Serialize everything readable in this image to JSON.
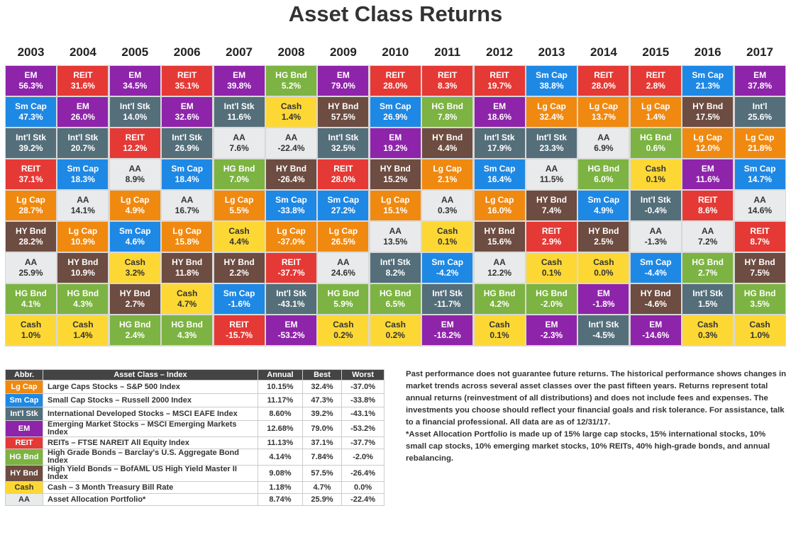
{
  "title": "Asset Class Returns",
  "colors": {
    "Lg Cap": "#f0890f",
    "Sm Cap": "#1e88e5",
    "Int'l Stk": "#546e7a",
    "EM": "#8e24aa",
    "REIT": "#e53935",
    "HG Bnd": "#7cb342",
    "HY Bnd": "#6d4c41",
    "Cash": "#fdd835",
    "AA": "#e8eaeb"
  },
  "chart_data": {
    "type": "table",
    "years": [
      "2003",
      "2004",
      "2005",
      "2006",
      "2007",
      "2008",
      "2009",
      "2010",
      "2011",
      "2012",
      "2013",
      "2014",
      "2015",
      "2016",
      "2017"
    ],
    "columns": [
      [
        [
          "EM",
          "56.3%"
        ],
        [
          "Sm Cap",
          "47.3%"
        ],
        [
          "Int'l Stk",
          "39.2%"
        ],
        [
          "REIT",
          "37.1%"
        ],
        [
          "Lg Cap",
          "28.7%"
        ],
        [
          "HY Bnd",
          "28.2%"
        ],
        [
          "AA",
          "25.9%"
        ],
        [
          "HG Bnd",
          "4.1%"
        ],
        [
          "Cash",
          "1.0%"
        ]
      ],
      [
        [
          "REIT",
          "31.6%"
        ],
        [
          "EM",
          "26.0%"
        ],
        [
          "Int'l Stk",
          "20.7%"
        ],
        [
          "Sm Cap",
          "18.3%"
        ],
        [
          "AA",
          "14.1%"
        ],
        [
          "Lg Cap",
          "10.9%"
        ],
        [
          "HY Bnd",
          "10.9%"
        ],
        [
          "HG Bnd",
          "4.3%"
        ],
        [
          "Cash",
          "1.4%"
        ]
      ],
      [
        [
          "EM",
          "34.5%"
        ],
        [
          "Int'l Stk",
          "14.0%"
        ],
        [
          "REIT",
          "12.2%"
        ],
        [
          "AA",
          "8.9%"
        ],
        [
          "Lg Cap",
          "4.9%"
        ],
        [
          "Sm Cap",
          "4.6%"
        ],
        [
          "Cash",
          "3.2%"
        ],
        [
          "HY Bnd",
          "2.7%"
        ],
        [
          "HG Bnd",
          "2.4%"
        ]
      ],
      [
        [
          "REIT",
          "35.1%"
        ],
        [
          "EM",
          "32.6%"
        ],
        [
          "Int'l Stk",
          "26.9%"
        ],
        [
          "Sm Cap",
          "18.4%"
        ],
        [
          "AA",
          "16.7%"
        ],
        [
          "Lg Cap",
          "15.8%"
        ],
        [
          "HY Bnd",
          "11.8%"
        ],
        [
          "Cash",
          "4.7%"
        ],
        [
          "HG Bnd",
          "4.3%"
        ]
      ],
      [
        [
          "EM",
          "39.8%"
        ],
        [
          "Int'l Stk",
          "11.6%"
        ],
        [
          "AA",
          "7.6%"
        ],
        [
          "HG Bnd",
          "7.0%"
        ],
        [
          "Lg Cap",
          "5.5%"
        ],
        [
          "Cash",
          "4.4%"
        ],
        [
          "HY Bnd",
          "2.2%"
        ],
        [
          "Sm Cap",
          "-1.6%"
        ],
        [
          "REIT",
          "-15.7%"
        ]
      ],
      [
        [
          "HG Bnd",
          "5.2%"
        ],
        [
          "Cash",
          "1.4%"
        ],
        [
          "AA",
          "-22.4%"
        ],
        [
          "HY Bnd",
          "-26.4%"
        ],
        [
          "Sm Cap",
          "-33.8%"
        ],
        [
          "Lg Cap",
          "-37.0%"
        ],
        [
          "REIT",
          "-37.7%"
        ],
        [
          "Int'l Stk",
          "-43.1%"
        ],
        [
          "EM",
          "-53.2%"
        ]
      ],
      [
        [
          "EM",
          "79.0%"
        ],
        [
          "HY Bnd",
          "57.5%"
        ],
        [
          "Int'l Stk",
          "32.5%"
        ],
        [
          "REIT",
          "28.0%"
        ],
        [
          "Sm Cap",
          "27.2%"
        ],
        [
          "Lg Cap",
          "26.5%"
        ],
        [
          "AA",
          "24.6%"
        ],
        [
          "HG Bnd",
          "5.9%"
        ],
        [
          "Cash",
          "0.2%"
        ]
      ],
      [
        [
          "REIT",
          "28.0%"
        ],
        [
          "Sm Cap",
          "26.9%"
        ],
        [
          "EM",
          "19.2%"
        ],
        [
          "HY Bnd",
          "15.2%"
        ],
        [
          "Lg Cap",
          "15.1%"
        ],
        [
          "AA",
          "13.5%"
        ],
        [
          "Int'l Stk",
          "8.2%"
        ],
        [
          "HG Bnd",
          "6.5%"
        ],
        [
          "Cash",
          "0.2%"
        ]
      ],
      [
        [
          "REIT",
          "8.3%"
        ],
        [
          "HG Bnd",
          "7.8%"
        ],
        [
          "HY Bnd",
          "4.4%"
        ],
        [
          "Lg Cap",
          "2.1%"
        ],
        [
          "AA",
          "0.3%"
        ],
        [
          "Cash",
          "0.1%"
        ],
        [
          "Sm Cap",
          "-4.2%"
        ],
        [
          "Int'l Stk",
          "-11.7%"
        ],
        [
          "EM",
          "-18.2%"
        ]
      ],
      [
        [
          "REIT",
          "19.7%"
        ],
        [
          "EM",
          "18.6%"
        ],
        [
          "Int'l Stk",
          "17.9%"
        ],
        [
          "Sm Cap",
          "16.4%"
        ],
        [
          "Lg Cap",
          "16.0%"
        ],
        [
          "HY Bnd",
          "15.6%"
        ],
        [
          "AA",
          "12.2%"
        ],
        [
          "HG Bnd",
          "4.2%"
        ],
        [
          "Cash",
          "0.1%"
        ]
      ],
      [
        [
          "Sm Cap",
          "38.8%"
        ],
        [
          "Lg Cap",
          "32.4%"
        ],
        [
          "Int'l Stk",
          "23.3%"
        ],
        [
          "AA",
          "11.5%"
        ],
        [
          "HY Bnd",
          "7.4%"
        ],
        [
          "REIT",
          "2.9%"
        ],
        [
          "Cash",
          "0.1%"
        ],
        [
          "HG Bnd",
          "-2.0%"
        ],
        [
          "EM",
          "-2.3%"
        ]
      ],
      [
        [
          "REIT",
          "28.0%"
        ],
        [
          "Lg Cap",
          "13.7%"
        ],
        [
          "AA",
          "6.9%"
        ],
        [
          "HG Bnd",
          "6.0%"
        ],
        [
          "Sm Cap",
          "4.9%"
        ],
        [
          "HY Bnd",
          "2.5%"
        ],
        [
          "Cash",
          "0.0%"
        ],
        [
          "EM",
          "-1.8%"
        ],
        [
          "Int'l Stk",
          "-4.5%"
        ]
      ],
      [
        [
          "REIT",
          "2.8%"
        ],
        [
          "Lg Cap",
          "1.4%"
        ],
        [
          "HG Bnd",
          "0.6%"
        ],
        [
          "Cash",
          "0.1%"
        ],
        [
          "Int'l Stk",
          "-0.4%"
        ],
        [
          "AA",
          "-1.3%"
        ],
        [
          "Sm Cap",
          "-4.4%"
        ],
        [
          "HY Bnd",
          "-4.6%"
        ],
        [
          "EM",
          "-14.6%"
        ]
      ],
      [
        [
          "Sm Cap",
          "21.3%"
        ],
        [
          "HY Bnd",
          "17.5%"
        ],
        [
          "Lg Cap",
          "12.0%"
        ],
        [
          "EM",
          "11.6%"
        ],
        [
          "REIT",
          "8.6%"
        ],
        [
          "AA",
          "7.2%"
        ],
        [
          "HG Bnd",
          "2.7%"
        ],
        [
          "Int'l Stk",
          "1.5%"
        ],
        [
          "Cash",
          "0.3%"
        ]
      ],
      [
        [
          "EM",
          "37.8%"
        ],
        [
          "Int'l",
          "25.6%"
        ],
        [
          "Lg Cap",
          "21.8%"
        ],
        [
          "Sm Cap",
          "14.7%"
        ],
        [
          "AA",
          "14.6%"
        ],
        [
          "REIT",
          "8.7%"
        ],
        [
          "HY Bnd",
          "7.5%"
        ],
        [
          "HG Bnd",
          "3.5%"
        ],
        [
          "Cash",
          "1.0%"
        ]
      ]
    ]
  },
  "legend": {
    "headers": [
      "Abbr.",
      "Asset Class – Index",
      "Annual",
      "Best",
      "Worst"
    ],
    "rows": [
      {
        "abbr": "Lg Cap",
        "key": "Lg Cap",
        "name": "Large Caps Stocks – S&P 500 Index",
        "annual": "10.15%",
        "best": "32.4%",
        "worst": "-37.0%"
      },
      {
        "abbr": "Sm Cap",
        "key": "Sm Cap",
        "name": "Small Cap Stocks – Russell 2000 Index",
        "annual": "11.17%",
        "best": "47.3%",
        "worst": "-33.8%"
      },
      {
        "abbr": "Int'l Stk",
        "key": "Int'l Stk",
        "name": "International Developed Stocks – MSCI EAFE Index",
        "annual": "8.60%",
        "best": "39.2%",
        "worst": "-43.1%"
      },
      {
        "abbr": "EM",
        "key": "EM",
        "name": "Emerging Market Stocks – MSCI Emerging Markets Index",
        "annual": "12.68%",
        "best": "79.0%",
        "worst": "-53.2%"
      },
      {
        "abbr": "REIT",
        "key": "REIT",
        "name": "REITs – FTSE NAREIT All Equity Index",
        "annual": "11.13%",
        "best": "37.1%",
        "worst": "-37.7%"
      },
      {
        "abbr": "HG Bnd",
        "key": "HG Bnd",
        "name": "High Grade Bonds – Barclay's U.S. Aggregate Bond Index",
        "annual": "4.14%",
        "best": "7.84%",
        "worst": "-2.0%"
      },
      {
        "abbr": "HY Bnd",
        "key": "HY Bnd",
        "name": "High Yield Bonds – BofAML US High Yield Master II Index",
        "annual": "9.08%",
        "best": "57.5%",
        "worst": "-26.4%"
      },
      {
        "abbr": "Cash",
        "key": "Cash",
        "name": "Cash – 3 Month Treasury Bill Rate",
        "annual": "1.18%",
        "best": "4.7%",
        "worst": "0.0%"
      },
      {
        "abbr": "AA",
        "key": "AA",
        "name": "Asset Allocation Portfolio*",
        "annual": "8.74%",
        "best": "25.9%",
        "worst": "-22.4%"
      }
    ]
  },
  "note": {
    "p1": "Past performance does not guarantee future returns. The historical performance shows changes in market trends across several asset classes over the past fifteen years. Returns represent total annual returns (reinvestment of all distributions) and does not include fees and expenses. The investments you choose should reflect your financial goals and risk tolerance. For assistance, talk to a financial professional. All data are as of 12/31/17.",
    "p2": "*Asset Allocation Portfolio is made up of 15% large cap stocks, 15% international stocks, 10% small cap stocks, 10% emerging market stocks, 10% REITs, 40% high-grade bonds, and annual rebalancing."
  }
}
